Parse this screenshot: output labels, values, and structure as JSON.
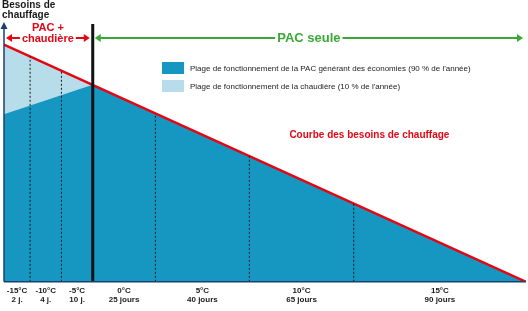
{
  "chart_data": {
    "type": "line",
    "y_label": "Besoins de chauffage",
    "xlim": [
      0,
      100
    ],
    "ylim": [
      0,
      100
    ],
    "xticks": [
      {
        "value": 2.5,
        "label": "-15°C\n2 j."
      },
      {
        "value": 8,
        "label": "-10°C\n4 j."
      },
      {
        "value": 14,
        "label": "-5°C\n10 j."
      },
      {
        "value": 23,
        "label": "0°C\n25 jours"
      },
      {
        "value": 38,
        "label": "5°C\n40 jours"
      },
      {
        "value": 57,
        "label": "10°C\n65 jours"
      },
      {
        "value": 83.5,
        "label": "15°C\n90 jours"
      }
    ],
    "grid": false,
    "tick_labels": "x",
    "series": [
      {
        "name": "Plage de fonctionnement de la PAC générant des économies (90 % de l'année)",
        "type": "area",
        "color": "#1597c2",
        "x": [
          0,
          17,
          100
        ],
        "values": [
          65,
          76.4,
          0
        ]
      },
      {
        "name": "Plage de fonctionnement de la chaudière (10 % de l'année)",
        "type": "area",
        "color": "#b7dcea",
        "x": [
          0,
          17
        ],
        "values": [
          92,
          76.4
        ]
      },
      {
        "type": "line",
        "color": "#e30613",
        "x": [
          0,
          100
        ],
        "values": [
          92,
          0
        ]
      }
    ],
    "vlines": [
      {
        "x": 5,
        "line_style": "dotted"
      },
      {
        "x": 11,
        "line_style": "dotted"
      },
      {
        "x": 17,
        "line_style": "solid"
      },
      {
        "x": 29,
        "line_style": "dotted"
      },
      {
        "x": 47,
        "line_style": "dotted"
      },
      {
        "x": 67,
        "line_style": "dotted"
      }
    ],
    "spans": [
      {
        "text": "PAC + chaudière",
        "x": [
          0,
          17
        ],
        "color": "#e30613"
      },
      {
        "text": "PAC seule",
        "x": [
          17,
          100
        ],
        "color": "#3aa935"
      }
    ],
    "annotations": [
      {
        "text": "Courbe des besoins de chauffage",
        "x": 70,
        "y": 57,
        "color": "#e30613"
      }
    ]
  }
}
